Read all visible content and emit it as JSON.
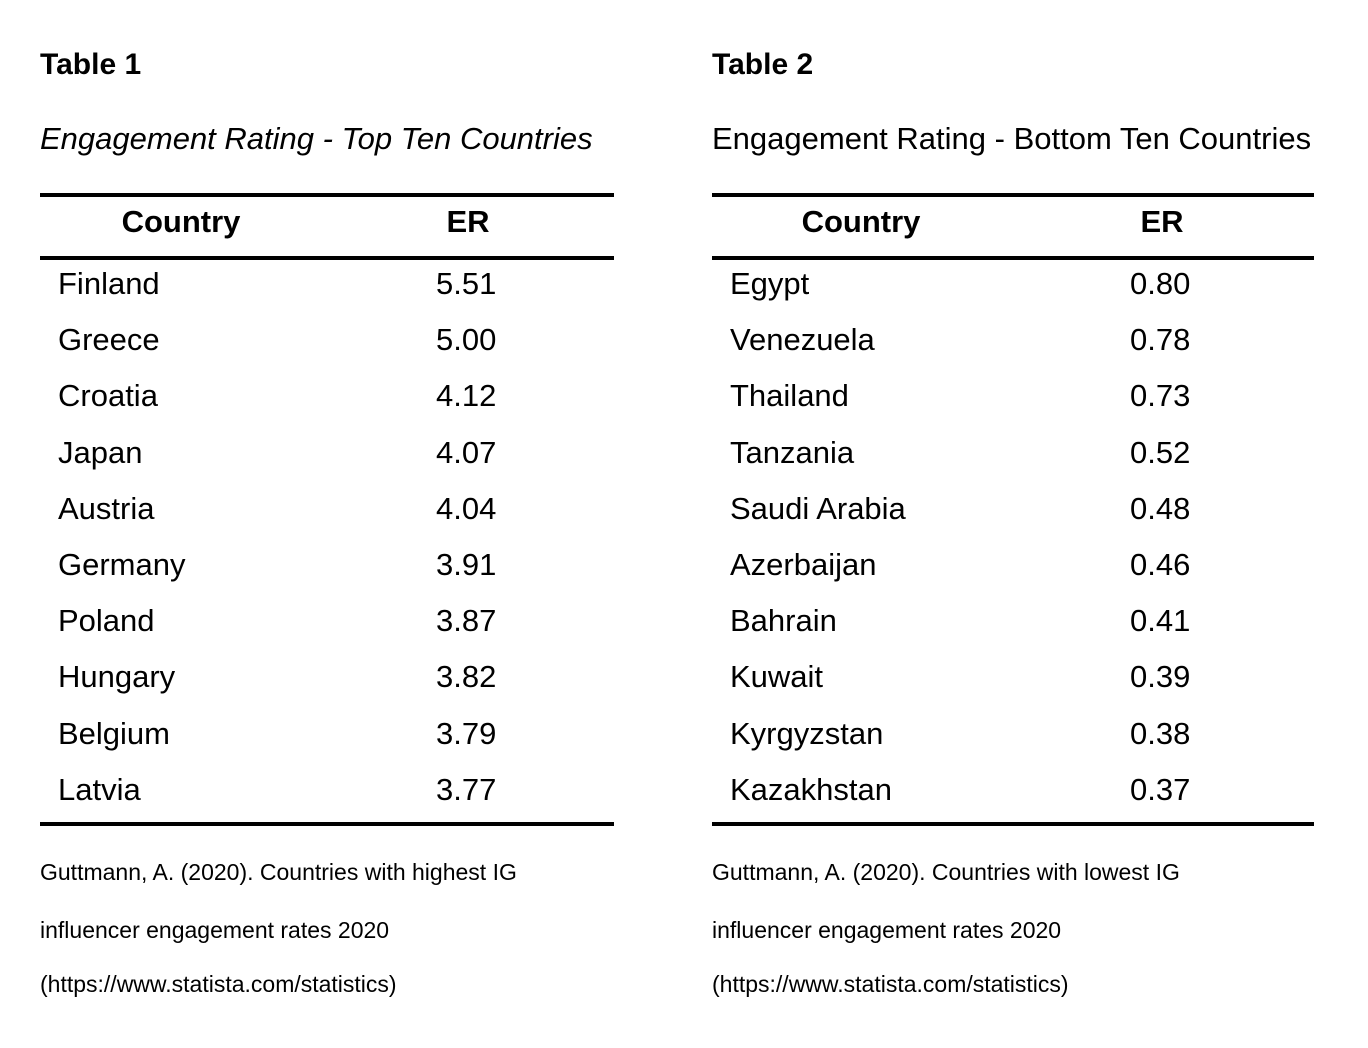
{
  "tables": [
    {
      "label": "Table 1",
      "subtitle": "Engagement Rating - Top Ten Countries",
      "columns": [
        "Country",
        "ER"
      ],
      "rows": [
        {
          "country": "Finland",
          "er": "5.51"
        },
        {
          "country": "Greece",
          "er": "5.00"
        },
        {
          "country": "Croatia",
          "er": "4.12"
        },
        {
          "country": "Japan",
          "er": "4.07"
        },
        {
          "country": "Austria",
          "er": "4.04"
        },
        {
          "country": "Germany",
          "er": "3.91"
        },
        {
          "country": "Poland",
          "er": "3.87"
        },
        {
          "country": "Hungary",
          "er": "3.82"
        },
        {
          "country": "Belgium",
          "er": "3.79"
        },
        {
          "country": "Latvia",
          "er": "3.77"
        }
      ],
      "source_lines": [
        "Guttmann, A. (2020). Countries with highest IG",
        "influencer engagement rates 2020",
        "(https://www.statista.com/statistics)"
      ]
    },
    {
      "label": "Table 2",
      "subtitle": "Engagement Rating - Bottom Ten Countries",
      "columns": [
        "Country",
        "ER"
      ],
      "rows": [
        {
          "country": "Egypt",
          "er": "0.80"
        },
        {
          "country": "Venezuela",
          "er": "0.78"
        },
        {
          "country": "Thailand",
          "er": "0.73"
        },
        {
          "country": "Tanzania",
          "er": "0.52"
        },
        {
          "country": "Saudi Arabia",
          "er": "0.48"
        },
        {
          "country": "Azerbaijan",
          "er": "0.46"
        },
        {
          "country": "Bahrain",
          "er": "0.41"
        },
        {
          "country": "Kuwait",
          "er": "0.39"
        },
        {
          "country": "Kyrgyzstan",
          "er": "0.38"
        },
        {
          "country": "Kazakhstan",
          "er": "0.37"
        }
      ],
      "source_lines": [
        "Guttmann, A. (2020). Countries with lowest IG",
        "influencer engagement rates 2020",
        "(https://www.statista.com/statistics)"
      ]
    }
  ]
}
